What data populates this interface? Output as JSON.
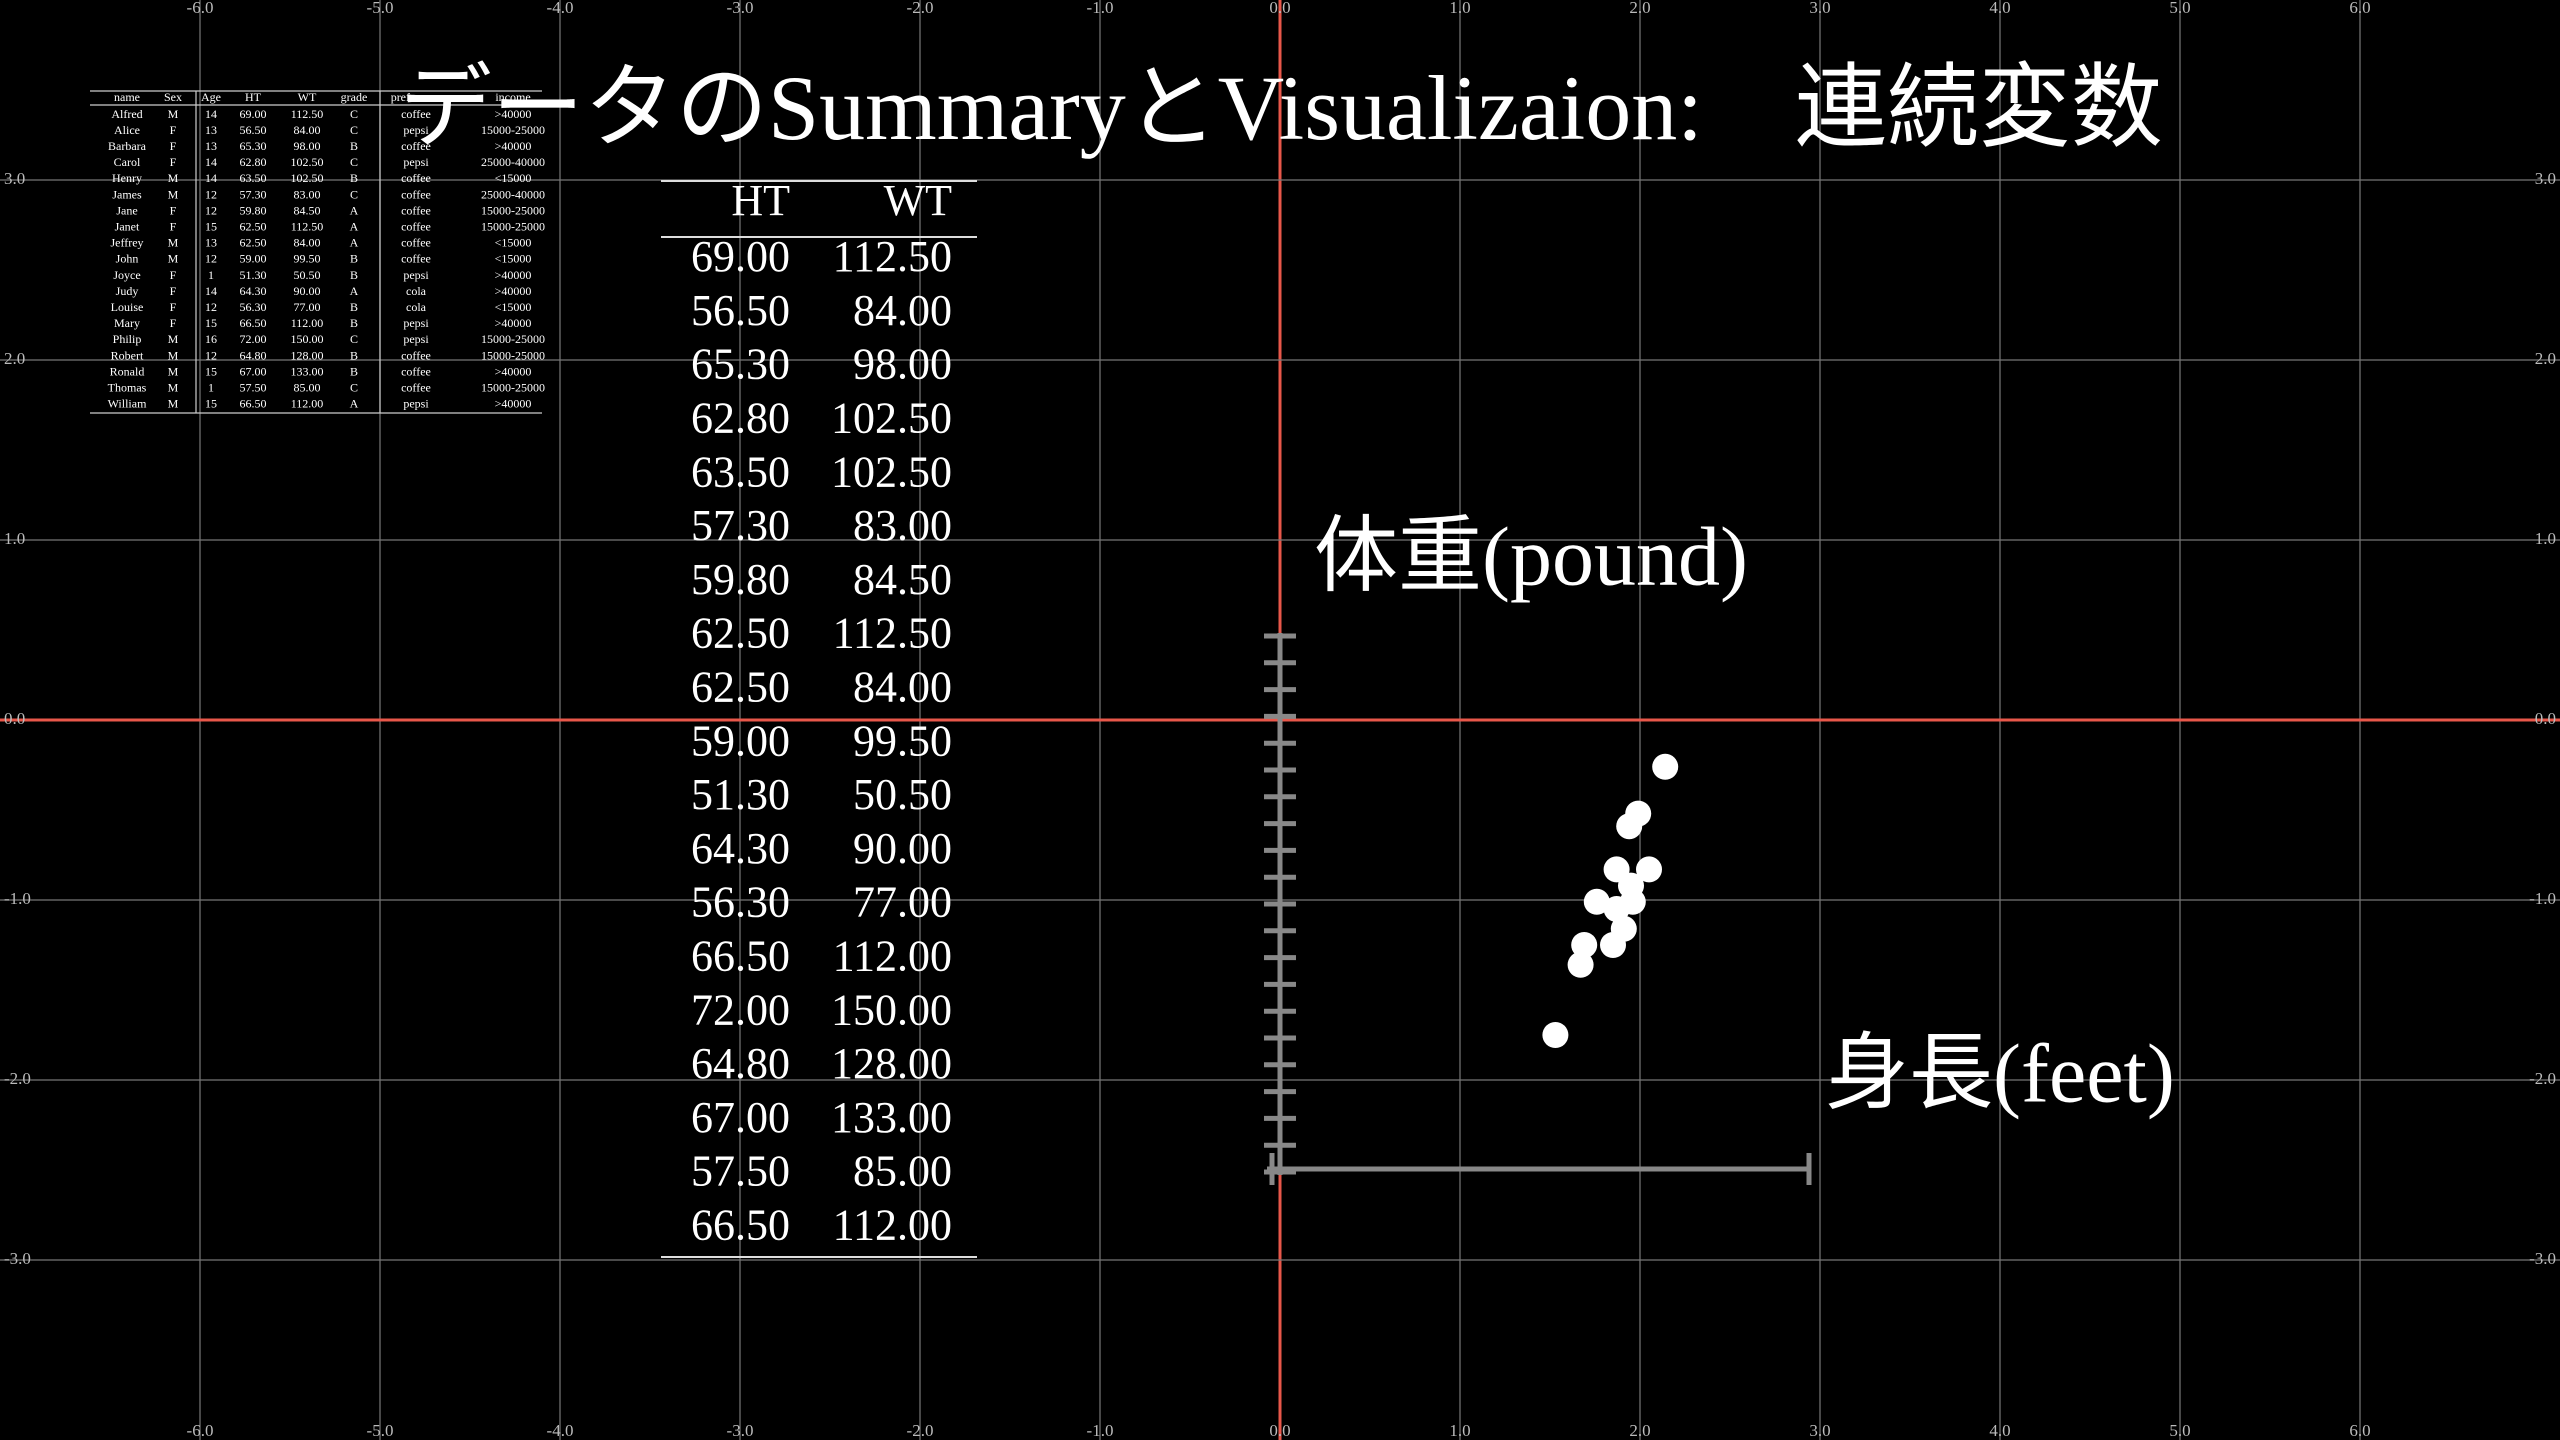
{
  "title": "データのSummaryとVisualizaion:　連続変数",
  "grid": {
    "xticks": [
      {
        "value": -6,
        "label": "-6.0"
      },
      {
        "value": -5,
        "label": "-5.0"
      },
      {
        "value": -4,
        "label": "-4.0"
      },
      {
        "value": -3,
        "label": "-3.0"
      },
      {
        "value": -2,
        "label": "-2.0"
      },
      {
        "value": -1,
        "label": "-1.0"
      },
      {
        "value": 0,
        "label": "0.0"
      },
      {
        "value": 1,
        "label": "1.0"
      },
      {
        "value": 2,
        "label": "2.0"
      },
      {
        "value": 3,
        "label": "3.0"
      },
      {
        "value": 4,
        "label": "4.0"
      },
      {
        "value": 5,
        "label": "5.0"
      },
      {
        "value": 6,
        "label": "6.0"
      }
    ],
    "yticks": [
      {
        "value": -3,
        "label": "-3.0"
      },
      {
        "value": -2,
        "label": "-2.0"
      },
      {
        "value": -1,
        "label": "-1.0"
      },
      {
        "value": 0,
        "label": "0.0"
      },
      {
        "value": 1,
        "label": "1.0"
      },
      {
        "value": 2,
        "label": "2.0"
      },
      {
        "value": 3,
        "label": "3.0"
      }
    ]
  },
  "small_table": {
    "header": [
      "name",
      "Sex",
      "Age",
      "HT",
      "WT",
      "grade",
      "preference",
      "income"
    ],
    "rows": [
      [
        "Alfred",
        "M",
        "14",
        "69.00",
        "112.50",
        "C",
        "coffee",
        ">40000"
      ],
      [
        "Alice",
        "F",
        "13",
        "56.50",
        "84.00",
        "C",
        "pepsi",
        "15000-25000"
      ],
      [
        "Barbara",
        "F",
        "13",
        "65.30",
        "98.00",
        "B",
        "coffee",
        ">40000"
      ],
      [
        "Carol",
        "F",
        "14",
        "62.80",
        "102.50",
        "C",
        "pepsi",
        "25000-40000"
      ],
      [
        "Henry",
        "M",
        "14",
        "63.50",
        "102.50",
        "B",
        "coffee",
        "<15000"
      ],
      [
        "James",
        "M",
        "12",
        "57.30",
        "83.00",
        "C",
        "coffee",
        "25000-40000"
      ],
      [
        "Jane",
        "F",
        "12",
        "59.80",
        "84.50",
        "A",
        "coffee",
        "15000-25000"
      ],
      [
        "Janet",
        "F",
        "15",
        "62.50",
        "112.50",
        "A",
        "coffee",
        "15000-25000"
      ],
      [
        "Jeffrey",
        "M",
        "13",
        "62.50",
        "84.00",
        "A",
        "coffee",
        "<15000"
      ],
      [
        "John",
        "M",
        "12",
        "59.00",
        "99.50",
        "B",
        "coffee",
        "<15000"
      ],
      [
        "Joyce",
        "F",
        "1",
        "51.30",
        "50.50",
        "B",
        "pepsi",
        ">40000"
      ],
      [
        "Judy",
        "F",
        "14",
        "64.30",
        "90.00",
        "A",
        "cola",
        ">40000"
      ],
      [
        "Louise",
        "F",
        "12",
        "56.30",
        "77.00",
        "B",
        "cola",
        "<15000"
      ],
      [
        "Mary",
        "F",
        "15",
        "66.50",
        "112.00",
        "B",
        "pepsi",
        ">40000"
      ],
      [
        "Philip",
        "M",
        "16",
        "72.00",
        "150.00",
        "C",
        "pepsi",
        "15000-25000"
      ],
      [
        "Robert",
        "M",
        "12",
        "64.80",
        "128.00",
        "B",
        "coffee",
        "15000-25000"
      ],
      [
        "Ronald",
        "M",
        "15",
        "67.00",
        "133.00",
        "B",
        "coffee",
        ">40000"
      ],
      [
        "Thomas",
        "M",
        "1",
        "57.50",
        "85.00",
        "C",
        "coffee",
        "15000-25000"
      ],
      [
        "William",
        "M",
        "15",
        "66.50",
        "112.00",
        "A",
        "pepsi",
        ">40000"
      ]
    ]
  },
  "ht_wt_table": {
    "header": [
      "HT",
      "WT"
    ],
    "rows": [
      [
        "69.00",
        "112.50"
      ],
      [
        "56.50",
        "84.00"
      ],
      [
        "65.30",
        "98.00"
      ],
      [
        "62.80",
        "102.50"
      ],
      [
        "63.50",
        "102.50"
      ],
      [
        "57.30",
        "83.00"
      ],
      [
        "59.80",
        "84.50"
      ],
      [
        "62.50",
        "112.50"
      ],
      [
        "62.50",
        "84.00"
      ],
      [
        "59.00",
        "99.50"
      ],
      [
        "51.30",
        "50.50"
      ],
      [
        "64.30",
        "90.00"
      ],
      [
        "56.30",
        "77.00"
      ],
      [
        "66.50",
        "112.00"
      ],
      [
        "72.00",
        "150.00"
      ],
      [
        "64.80",
        "128.00"
      ],
      [
        "67.00",
        "133.00"
      ],
      [
        "57.50",
        "85.00"
      ],
      [
        "66.50",
        "112.00"
      ]
    ]
  },
  "weight_label": "体重(pound)",
  "height_label": "身長(feet)",
  "scatter": {
    "x": [
      2.14,
      1.99,
      1.94,
      2.05,
      1.87,
      1.95,
      1.76,
      1.96,
      1.87,
      1.91,
      1.85,
      1.69,
      1.67,
      1.53
    ],
    "y": [
      -0.26,
      -0.52,
      -0.59,
      -0.83,
      -0.83,
      -0.92,
      -1.01,
      -1.01,
      -1.05,
      -1.16,
      -1.25,
      -1.25,
      -1.36,
      -1.75
    ]
  }
}
